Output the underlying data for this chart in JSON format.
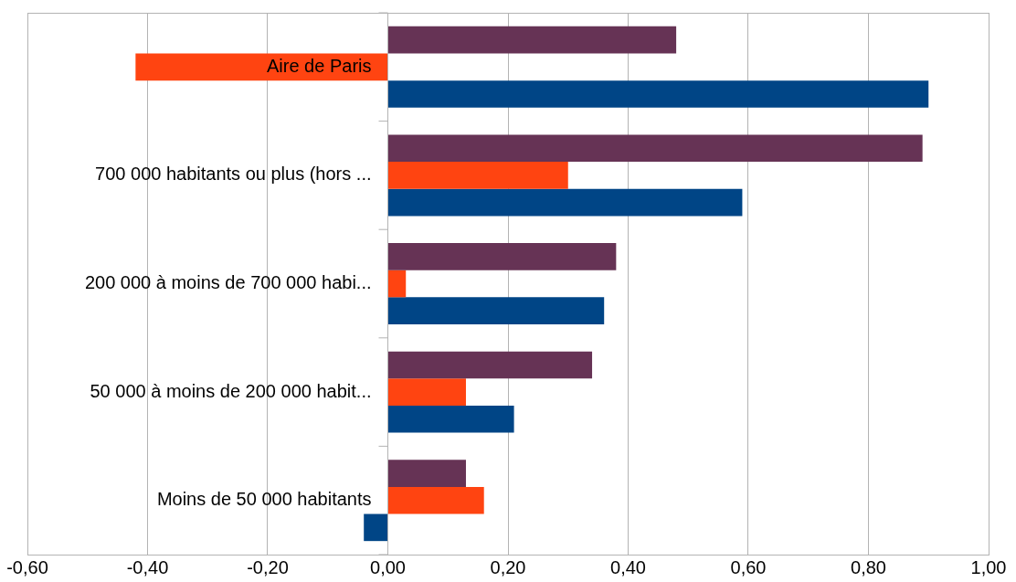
{
  "chart_data": {
    "type": "bar",
    "orientation": "horizontal",
    "categories": [
      "Aire de Paris",
      "700 000 habitants ou plus (hors ...",
      "200 000 à moins de 700 000 habi...",
      "50 000 à moins de 200 000 habit...",
      "Moins de 50 000 habitants"
    ],
    "series": [
      {
        "color": "#663355",
        "values": [
          0.48,
          0.89,
          0.38,
          0.34,
          0.13
        ]
      },
      {
        "color": "#ff4411",
        "values": [
          -0.42,
          0.3,
          0.03,
          0.13,
          0.16
        ]
      },
      {
        "color": "#004586",
        "values": [
          0.9,
          0.59,
          0.36,
          0.21,
          -0.04
        ]
      }
    ],
    "xlim": [
      -0.6,
      1.0
    ],
    "xticks": [
      {
        "value": -0.6,
        "label": "-0,60"
      },
      {
        "value": -0.4,
        "label": "-0,40"
      },
      {
        "value": -0.2,
        "label": "-0,20"
      },
      {
        "value": 0,
        "label": "0,00"
      },
      {
        "value": 0.2,
        "label": "0,20"
      },
      {
        "value": 0.4,
        "label": "0,40"
      },
      {
        "value": 0.6,
        "label": "0,60"
      },
      {
        "value": 0.8,
        "label": "0,80"
      },
      {
        "value": 1.0,
        "label": "1,00"
      }
    ],
    "grid": "x",
    "legend": false
  }
}
